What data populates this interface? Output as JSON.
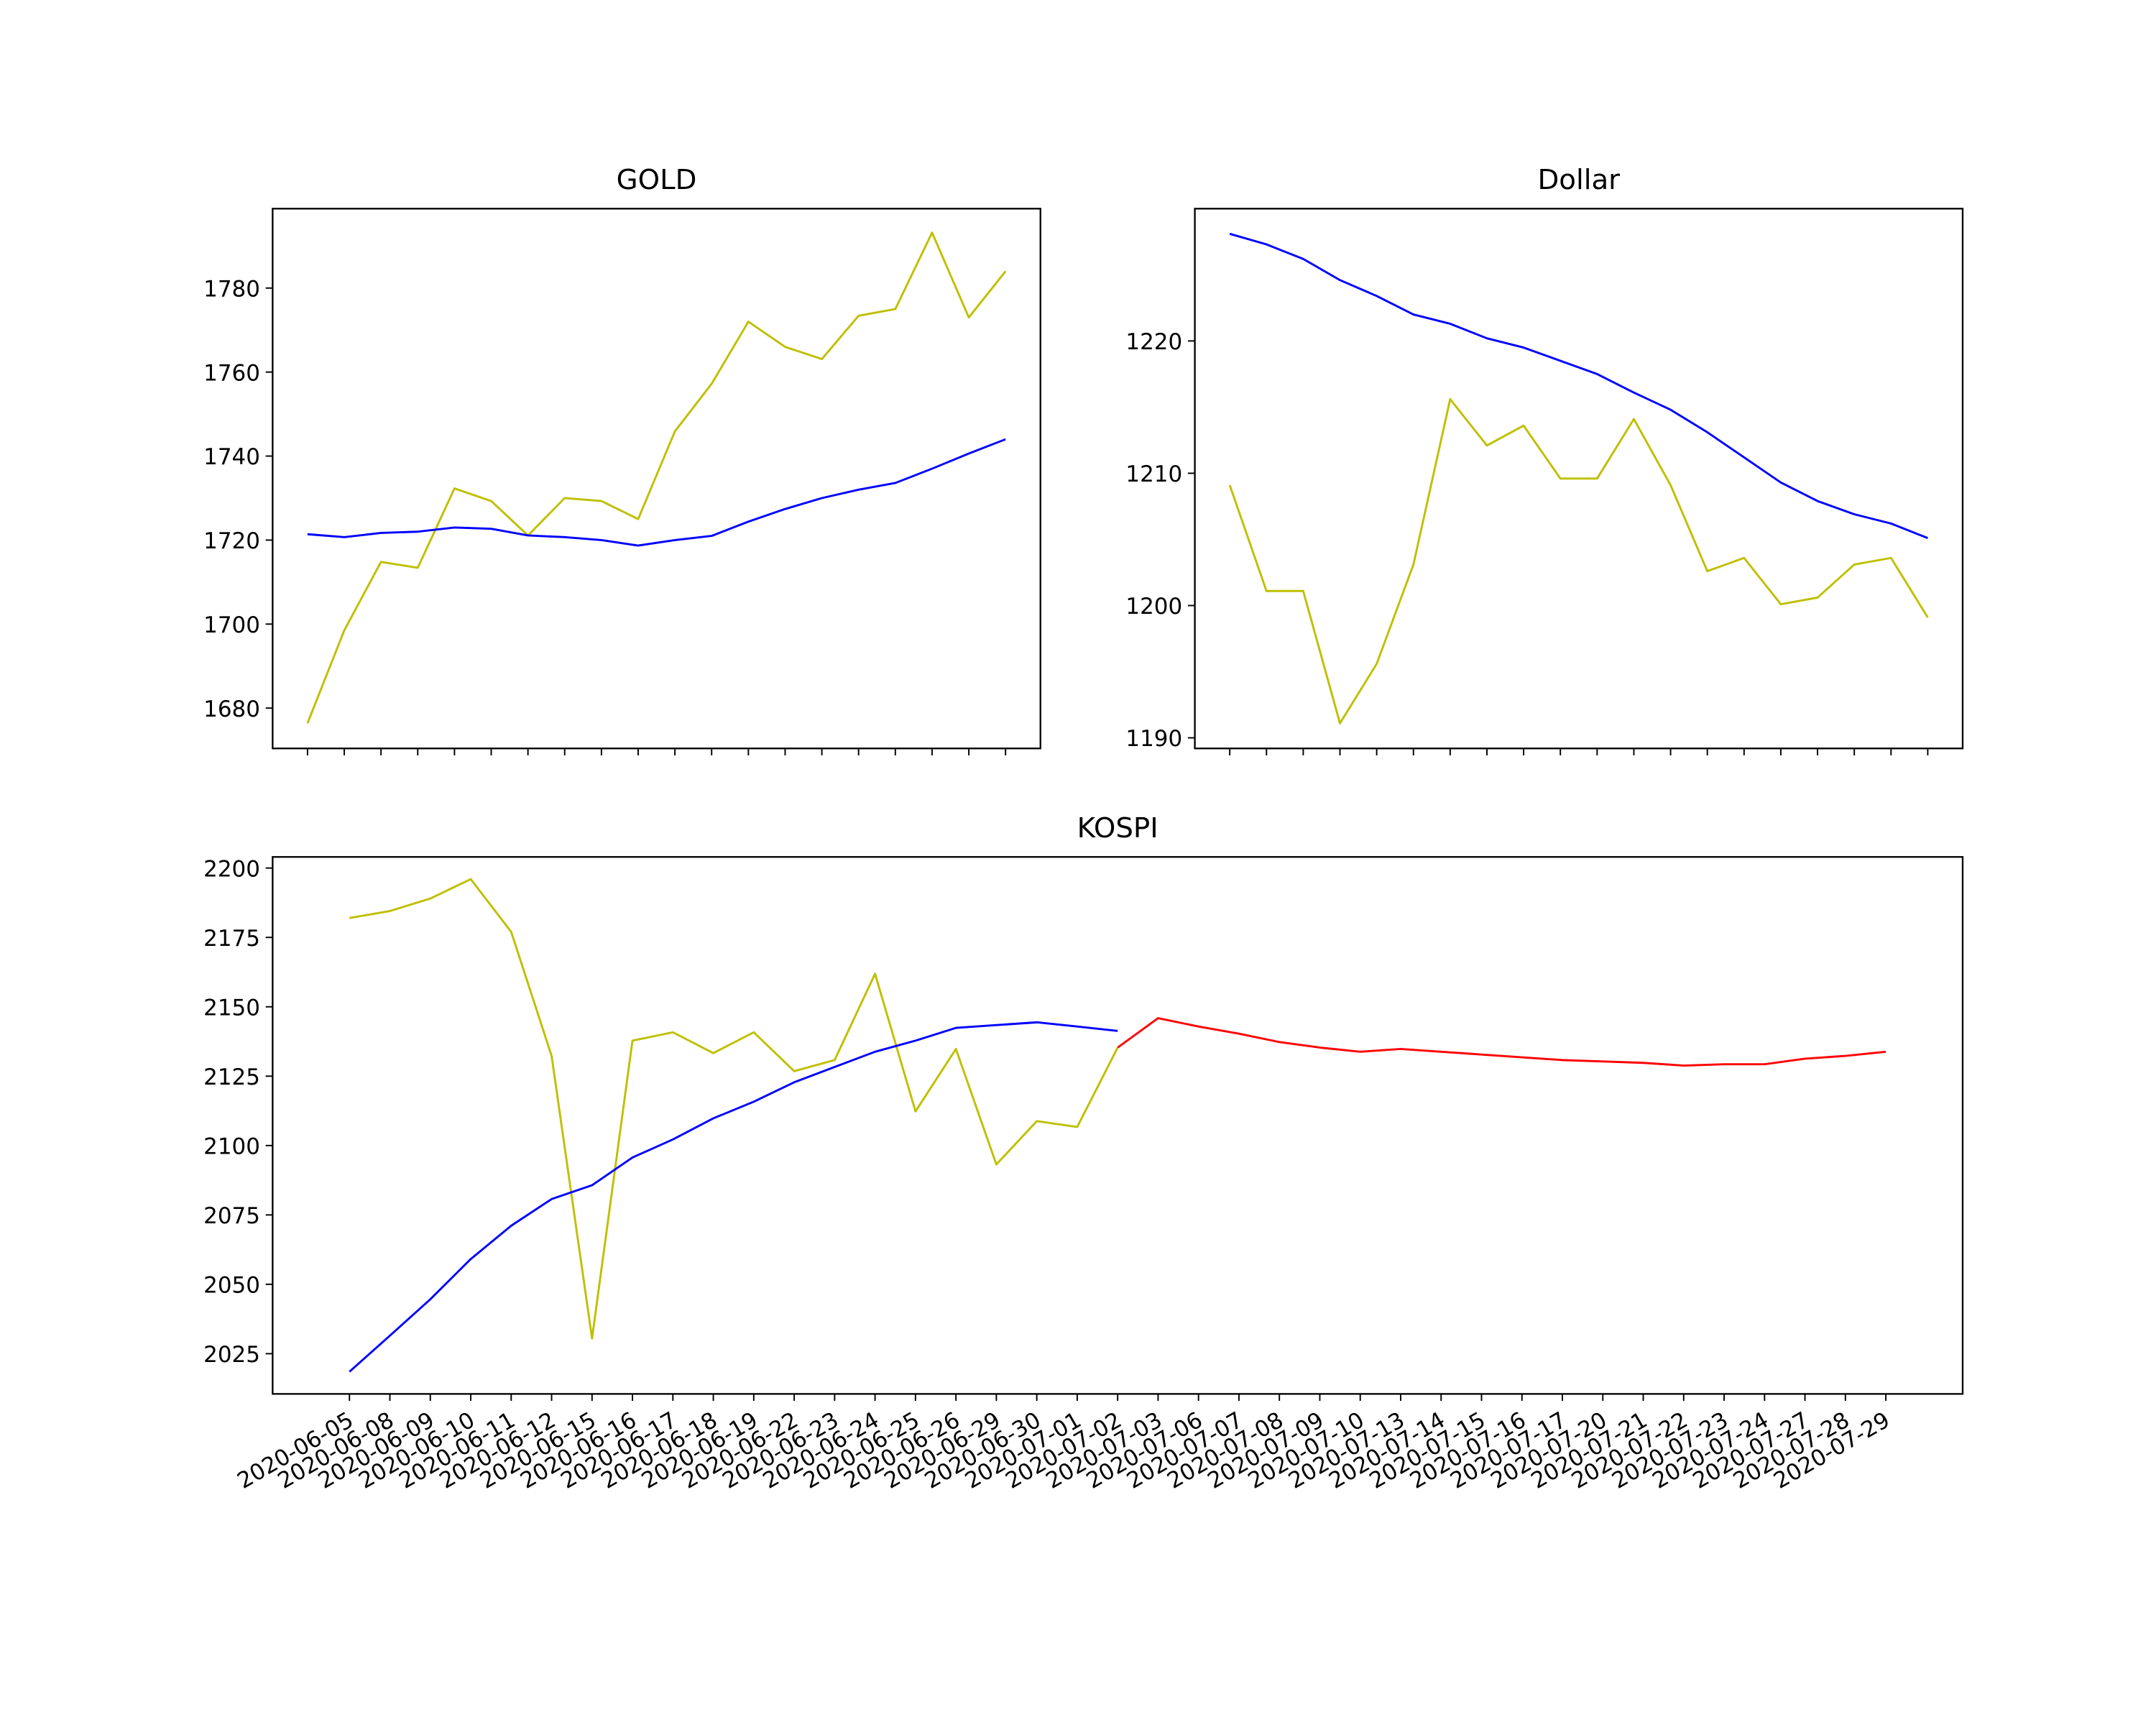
{
  "chart_data": [
    {
      "type": "line",
      "title": "GOLD",
      "categories": [
        null,
        null,
        null,
        null,
        null,
        null,
        null,
        null,
        null,
        null,
        null,
        null,
        null,
        null,
        null,
        null,
        null,
        null,
        null,
        null
      ],
      "series": [
        {
          "color": "#bfbf00",
          "values": [
            1676.4,
            1698.5,
            1714.8,
            1713.4,
            1732.3,
            1729.3,
            1721.1,
            1730,
            1729.3,
            1725,
            1745.9,
            1757.2,
            1772,
            1766,
            1763.1,
            1773.4,
            1775,
            1793.2,
            1773,
            1784
          ]
        },
        {
          "color": "#0000ff",
          "values": [
            1721.4,
            1720.7,
            1721.7,
            1722,
            1723,
            1722.7,
            1721.1,
            1720.7,
            1720,
            1718.7,
            1720,
            1721,
            1724.4,
            1727.4,
            1730,
            1732,
            1733.6,
            1737,
            1740.6,
            1744
          ]
        }
      ],
      "ylim": [
        1670.4,
        1798.9
      ],
      "yticks": [
        1680,
        1700,
        1720,
        1740,
        1760,
        1780
      ]
    },
    {
      "type": "line",
      "title": "Dollar",
      "categories": [
        null,
        null,
        null,
        null,
        null,
        null,
        null,
        null,
        null,
        null,
        null,
        null,
        null,
        null,
        null,
        null,
        null,
        null,
        null,
        null
      ],
      "series": [
        {
          "color": "#bfbf00",
          "values": [
            1209.1,
            1201.1,
            1201.1,
            1191.1,
            1195.6,
            1203.1,
            1215.6,
            1212.1,
            1213.6,
            1209.6,
            1209.6,
            1214.1,
            1209.1,
            1202.6,
            1203.6,
            1200.1,
            1200.6,
            1203.1,
            1203.6,
            1199.1
          ]
        },
        {
          "color": "#0000ff",
          "values": [
            1228.1,
            1227.3,
            1226.2,
            1224.6,
            1223.4,
            1222,
            1221.3,
            1220.2,
            1219.5,
            1218.5,
            1217.5,
            1216.1,
            1214.8,
            1213.1,
            1211.2,
            1209.3,
            1207.9,
            1206.9,
            1206.2,
            1205.1
          ]
        }
      ],
      "ylim": [
        1189.2,
        1230
      ],
      "yticks": [
        1190,
        1200,
        1210,
        1220
      ]
    },
    {
      "type": "line",
      "title": "KOSPI",
      "categories": [
        "2020-06-05",
        "2020-06-08",
        "2020-06-09",
        "2020-06-10",
        "2020-06-11",
        "2020-06-12",
        "2020-06-15",
        "2020-06-16",
        "2020-06-17",
        "2020-06-18",
        "2020-06-19",
        "2020-06-22",
        "2020-06-23",
        "2020-06-24",
        "2020-06-25",
        "2020-06-26",
        "2020-06-29",
        "2020-06-30",
        "2020-07-01",
        "2020-07-02",
        "2020-07-03",
        "2020-07-06",
        "2020-07-07",
        "2020-07-08",
        "2020-07-09",
        "2020-07-10",
        "2020-07-13",
        "2020-07-14",
        "2020-07-15",
        "2020-07-16",
        "2020-07-17",
        "2020-07-20",
        "2020-07-21",
        "2020-07-22",
        "2020-07-23",
        "2020-07-24",
        "2020-07-27",
        "2020-07-28",
        "2020-07-29"
      ],
      "series": [
        {
          "color": "#bfbf00",
          "values": [
            2182,
            2184.5,
            2189,
            2196,
            2177,
            2132.3,
            2030.5,
            2137.8,
            2140.8,
            2133.3,
            2140.8,
            2126.8,
            2130.8,
            2161.9,
            2112.3,
            2134.8,
            2093.2,
            2108.8,
            2106.7,
            2135.3,
            null,
            null,
            null,
            null,
            null,
            null,
            null,
            null,
            null,
            null,
            null,
            null,
            null,
            null,
            null,
            null,
            null,
            null,
            null
          ]
        },
        {
          "color": "#0000ff",
          "values": [
            2018.5,
            2031.5,
            2044.6,
            2059.1,
            2071.1,
            2080.7,
            2085.7,
            2095.7,
            2102.2,
            2109.8,
            2115.8,
            2122.8,
            2128.3,
            2133.8,
            2137.8,
            2142.4,
            2143.4,
            2144.4,
            2142.9,
            2141.3,
            null,
            null,
            null,
            null,
            null,
            null,
            null,
            null,
            null,
            null,
            null,
            null,
            null,
            null,
            null,
            null,
            null,
            null,
            null
          ]
        },
        {
          "color": "#ff0000",
          "values": [
            null,
            null,
            null,
            null,
            null,
            null,
            null,
            null,
            null,
            null,
            null,
            null,
            null,
            null,
            null,
            null,
            null,
            null,
            null,
            2135.3,
            2145.9,
            2142.9,
            2140.3,
            2137.3,
            2135.3,
            2133.8,
            2134.8,
            2133.8,
            2132.8,
            2131.8,
            2130.8,
            2130.3,
            2129.8,
            2128.8,
            2129.3,
            2129.3,
            2131.3,
            2132.3,
            2133.8
          ]
        }
      ],
      "ylim": [
        2010.5,
        2204
      ],
      "yticks": [
        2025,
        2050,
        2075,
        2100,
        2125,
        2150,
        2175,
        2200
      ]
    }
  ]
}
